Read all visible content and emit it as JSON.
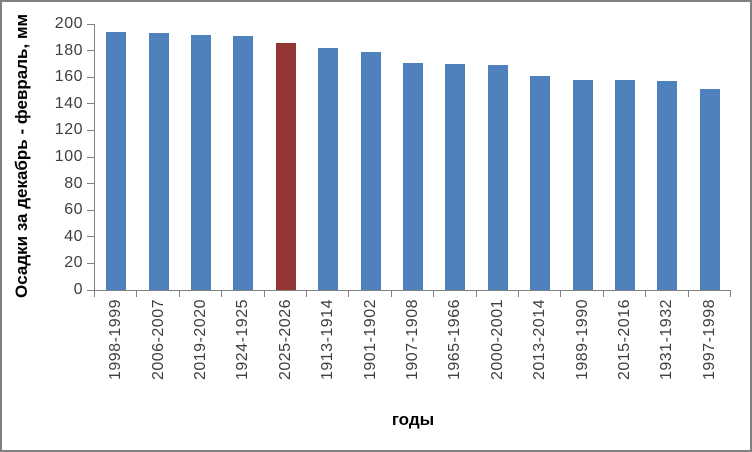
{
  "window": {
    "background": "#FFFFFF",
    "border_color": "#7F7F7F"
  },
  "chart_data": {
    "type": "bar",
    "title": "",
    "xlabel": "годы",
    "ylabel": "Осадки за декабрь - февраль, мм",
    "categories": [
      "1998-1999",
      "2006-2007",
      "2019-2020",
      "1924-1925",
      "2025-2026",
      "1913-1914",
      "1901-1902",
      "1907-1908",
      "1965-1966",
      "2000-2001",
      "2013-2014",
      "1989-1990",
      "2015-2016",
      "1931-1932",
      "1997-1998"
    ],
    "values": [
      194,
      193,
      192,
      191,
      186,
      182,
      179,
      171,
      170,
      169,
      161,
      158,
      158,
      157,
      151
    ],
    "highlight_index": 4,
    "highlight_category": "2025-2026",
    "ylim": [
      0,
      200
    ],
    "ytick_step": 20,
    "yticks": [
      0,
      20,
      40,
      60,
      80,
      100,
      120,
      140,
      160,
      180,
      200
    ],
    "grid": false,
    "legend": false,
    "bar_color": "#4F81BD",
    "highlight_color": "#943634",
    "axis_color": "#808080",
    "tick_label_color": "#3F3F3F"
  }
}
